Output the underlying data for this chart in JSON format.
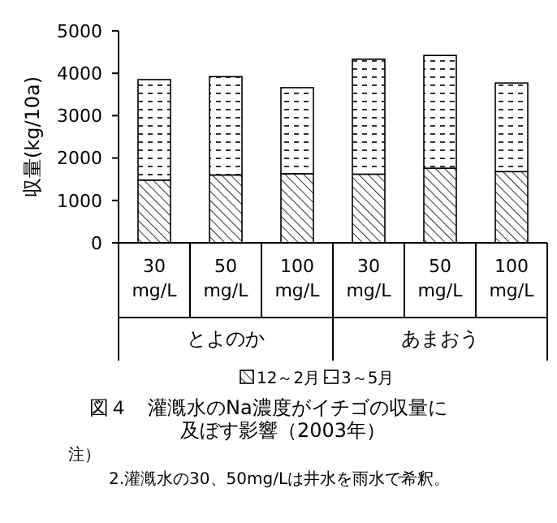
{
  "chart_data": {
    "type": "bar",
    "stacked": true,
    "title": "図４　灌漑水のNa濃度がイチゴの収量に及ぼす影響（2003年）",
    "ylabel": "収量(kg/10a)",
    "categories": [
      "30\nmg/L",
      "50\nmg/L",
      "100\nmg/L",
      "30\nmg/L",
      "50\nmg/L",
      "100\nmg/L"
    ],
    "series": [
      {
        "name": "12～2月",
        "color": "#000000",
        "values": [
          1480,
          1600,
          1630,
          1620,
          1760,
          1680
        ]
      },
      {
        "name": "3～5月",
        "color": "#000000",
        "values": [
          2370,
          2320,
          2030,
          2710,
          2660,
          2090
        ]
      }
    ],
    "ylim": [
      0,
      5000
    ],
    "yticks": [
      0,
      1000,
      2000,
      3000,
      4000,
      5000
    ],
    "legend": "bottom",
    "grid": false,
    "annotations": [
      "とよのか",
      "あまおう",
      "注）",
      "2.灌漑水の30、50mg/Lは井水を雨水で希釈。"
    ]
  }
}
